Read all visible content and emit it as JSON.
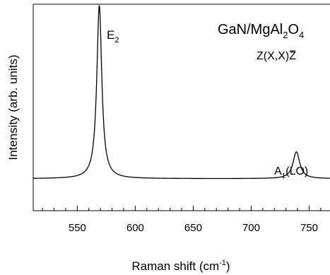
{
  "chart_data": {
    "type": "line",
    "title": "",
    "xlabel": "Raman shift (cm",
    "xlabel_sup": "-1",
    "xlabel_tail": ")",
    "ylabel": "Intensity (arb. units)",
    "xlim": [
      512,
      768
    ],
    "ylim": [
      0,
      1
    ],
    "xticks": [
      550,
      600,
      650,
      700,
      750
    ],
    "yticks_shown": false,
    "grid": false,
    "legend": "none",
    "annotations": {
      "sample": {
        "base": "GaN/MgAl",
        "sub1": "2",
        "mid": "O",
        "sub2": "4"
      },
      "geometry": {
        "pre": "Z(X,X)",
        "bar": "Z"
      },
      "peak_e2": {
        "base": "E",
        "sub": "2"
      },
      "peak_a1": {
        "base": "A",
        "sub": "1",
        "tail": "(LO)"
      }
    },
    "series": [
      {
        "color": "#000000",
        "baseline": 0.155,
        "peaks": [
          {
            "center": 569,
            "height": 0.84,
            "width": 2.6
          },
          {
            "center": 739,
            "height": 0.13,
            "width": 3.5
          }
        ]
      }
    ]
  }
}
